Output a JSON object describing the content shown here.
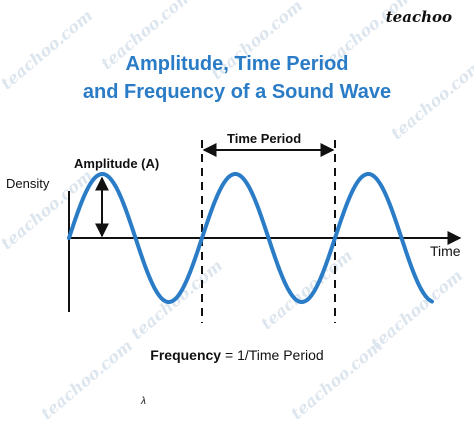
{
  "brand": "teachoo",
  "watermark": "teachoo.com",
  "title_line1": "Amplitude, Time Period",
  "title_line2": "and Frequency of a Sound Wave",
  "y_label": "Density",
  "x_label": "Time",
  "amplitude_label": "Amplitude (A)",
  "time_period_label": "Time Period",
  "formula": {
    "bold": "Frequency",
    "rest": " = 1/Time Period"
  },
  "lambda": "λ",
  "colors": {
    "title": "#2a7cc7",
    "wave": "#2a7cc7",
    "ink": "#111111"
  }
}
